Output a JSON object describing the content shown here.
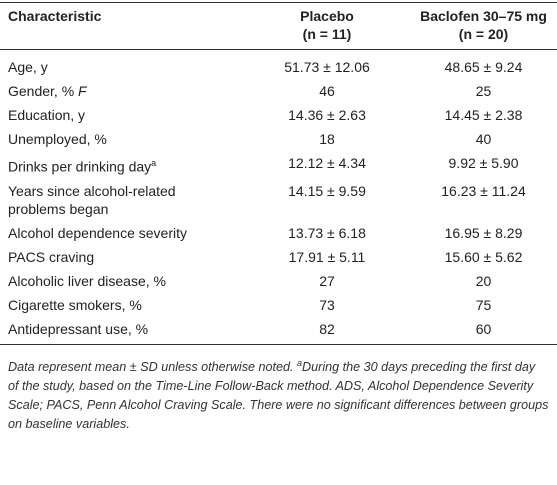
{
  "table": {
    "header": {
      "characteristic": "Characteristic",
      "placebo": "Placebo",
      "placebo_n": "(n = 11)",
      "baclofen": "Baclofen 30–75 mg",
      "baclofen_n": "(n = 20)"
    },
    "rows": [
      {
        "label": "Age, y",
        "placebo": "51.73 ± 12.06",
        "baclofen": "48.65 ± 9.24"
      },
      {
        "label": "Gender, % ",
        "label_italic": "F",
        "placebo": "46",
        "baclofen": "25"
      },
      {
        "label": "Education, y",
        "placebo": "14.36 ± 2.63",
        "baclofen": "14.45 ± 2.38"
      },
      {
        "label": "Unemployed, %",
        "placebo": "18",
        "baclofen": "40"
      },
      {
        "label": "Drinks per drinking day",
        "note": "a",
        "placebo": "12.12 ± 4.34",
        "baclofen": "9.92 ± 5.90"
      },
      {
        "label": "Years since alcohol-related problems began",
        "placebo": "14.15 ± 9.59",
        "baclofen": "16.23 ± 11.24"
      },
      {
        "label": "Alcohol dependence severity",
        "placebo": "13.73 ± 6.18",
        "baclofen": "16.95 ± 8.29"
      },
      {
        "label": "PACS craving",
        "placebo": "17.91 ± 5.11",
        "baclofen": "15.60 ± 5.62"
      },
      {
        "label": "Alcoholic liver disease, %",
        "placebo": "27",
        "baclofen": "20"
      },
      {
        "label": "Cigarette smokers, %",
        "placebo": "73",
        "baclofen": "75"
      },
      {
        "label": "Antidepressant use, %",
        "placebo": "82",
        "baclofen": "60"
      }
    ]
  },
  "footnote": [
    "Data represent mean ± SD unless otherwise noted. ",
    "a",
    "During the 30 days preceding the first day of the study, based on the Time-Line Follow-Back method. ADS, Alcohol Dependence Severity Scale; PACS, Penn Alcohol Craving Scale. There were no significant differences between groups on baseline variables."
  ]
}
